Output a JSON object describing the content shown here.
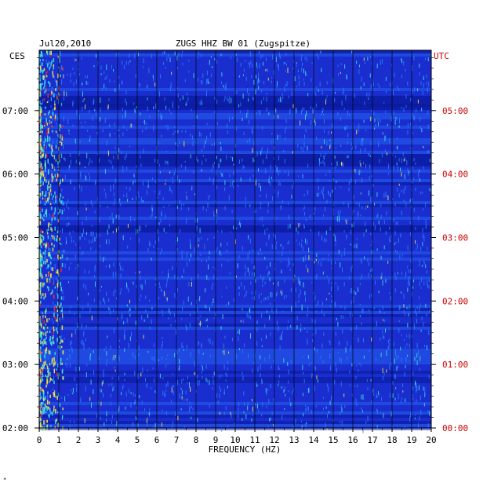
{
  "header": {
    "date": "Jul20,2010",
    "station": "ZUGS HHZ BW 01 (Zugspitze)",
    "left_zone": "CES",
    "right_zone": "UTC"
  },
  "chart_data": {
    "type": "heatmap",
    "title": "ZUGS HHZ BW 01 (Zugspitze)",
    "date": "Jul20,2010",
    "xlabel": "FREQUENCY (HZ)",
    "xlim": [
      0,
      20
    ],
    "x_ticks": [
      "0",
      "1",
      "2",
      "3",
      "4",
      "5",
      "6",
      "7",
      "8",
      "9",
      "10",
      "11",
      "12",
      "13",
      "14",
      "15",
      "16",
      "17",
      "18",
      "19",
      "20"
    ],
    "ylim_local_hours": [
      2.0,
      7.95
    ],
    "y_ticks_left": [
      "07:00",
      "06:00",
      "05:00",
      "04:00",
      "03:00",
      "02:00"
    ],
    "y_ticks_right": [
      "05:00",
      "04:00",
      "03:00",
      "02:00",
      "01:00",
      "00:00"
    ],
    "left_axis_label": "CES",
    "right_axis_label": "UTC",
    "colors": {
      "background": "#1a2ecf",
      "low": "#0a1a9e",
      "mid": "#2a7bff",
      "high": "#3fe0e0",
      "peak": "#ffe640",
      "max": "#ff2a20",
      "right_axis": "#cc0000"
    },
    "grid": true
  },
  "footer_mark": "*"
}
